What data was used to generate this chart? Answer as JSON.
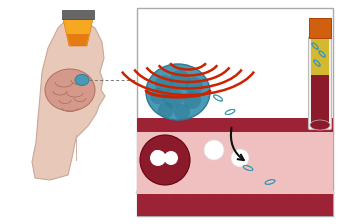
{
  "bg_color": "#ffffff",
  "head_skin": "#e8c8b8",
  "head_edge": "#c8a898",
  "brain_color": "#d4998a",
  "brain_edge": "#b07060",
  "tumor_blue": "#4a9ab5",
  "tumor_dark": "#2a7a95",
  "us_color": "#cc2200",
  "vessel_dark": "#9b2335",
  "vessel_pink": "#f0c0c0",
  "vessel_scallop": "#e8a8a8",
  "rbc_color": "#8b1a2a",
  "wbc_color": "#ffffff",
  "dna_color": "#3a9ab2",
  "tube_cap": "#d06010",
  "tube_gel": "#d4b830",
  "tube_blood": "#8b1a2a",
  "tube_glass": "#f0f0e8",
  "arrow_color": "#111111",
  "panel_edge": "#aaaaaa",
  "transducer_gray": "#666666",
  "cone_yellow": "#f5a820",
  "cone_orange": "#e07010",
  "dashed_line": "#777777"
}
